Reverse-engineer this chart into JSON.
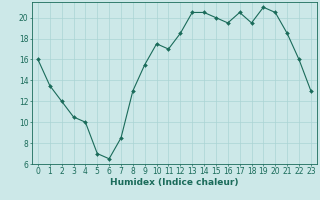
{
  "x": [
    0,
    1,
    2,
    3,
    4,
    5,
    6,
    7,
    8,
    9,
    10,
    11,
    12,
    13,
    14,
    15,
    16,
    17,
    18,
    19,
    20,
    21,
    22,
    23
  ],
  "y": [
    16,
    13.5,
    12,
    10.5,
    10,
    7,
    6.5,
    8.5,
    13,
    15.5,
    17.5,
    17,
    18.5,
    20.5,
    20.5,
    20,
    19.5,
    20.5,
    19.5,
    21,
    20.5,
    18.5,
    16,
    13
  ],
  "line_color": "#1a6b5a",
  "marker": "D",
  "marker_size": 2.0,
  "bg_color": "#cce8e8",
  "grid_color": "#aad4d4",
  "xlabel": "Humidex (Indice chaleur)",
  "xlim": [
    -0.5,
    23.5
  ],
  "ylim": [
    6,
    21.5
  ],
  "yticks": [
    6,
    8,
    10,
    12,
    14,
    16,
    18,
    20
  ],
  "xticks": [
    0,
    1,
    2,
    3,
    4,
    5,
    6,
    7,
    8,
    9,
    10,
    11,
    12,
    13,
    14,
    15,
    16,
    17,
    18,
    19,
    20,
    21,
    22,
    23
  ],
  "xtick_labels": [
    "0",
    "1",
    "2",
    "3",
    "4",
    "5",
    "6",
    "7",
    "8",
    "9",
    "10",
    "11",
    "12",
    "13",
    "14",
    "15",
    "16",
    "17",
    "18",
    "19",
    "20",
    "21",
    "22",
    "23"
  ],
  "label_fontsize": 6.5,
  "tick_fontsize": 5.5
}
